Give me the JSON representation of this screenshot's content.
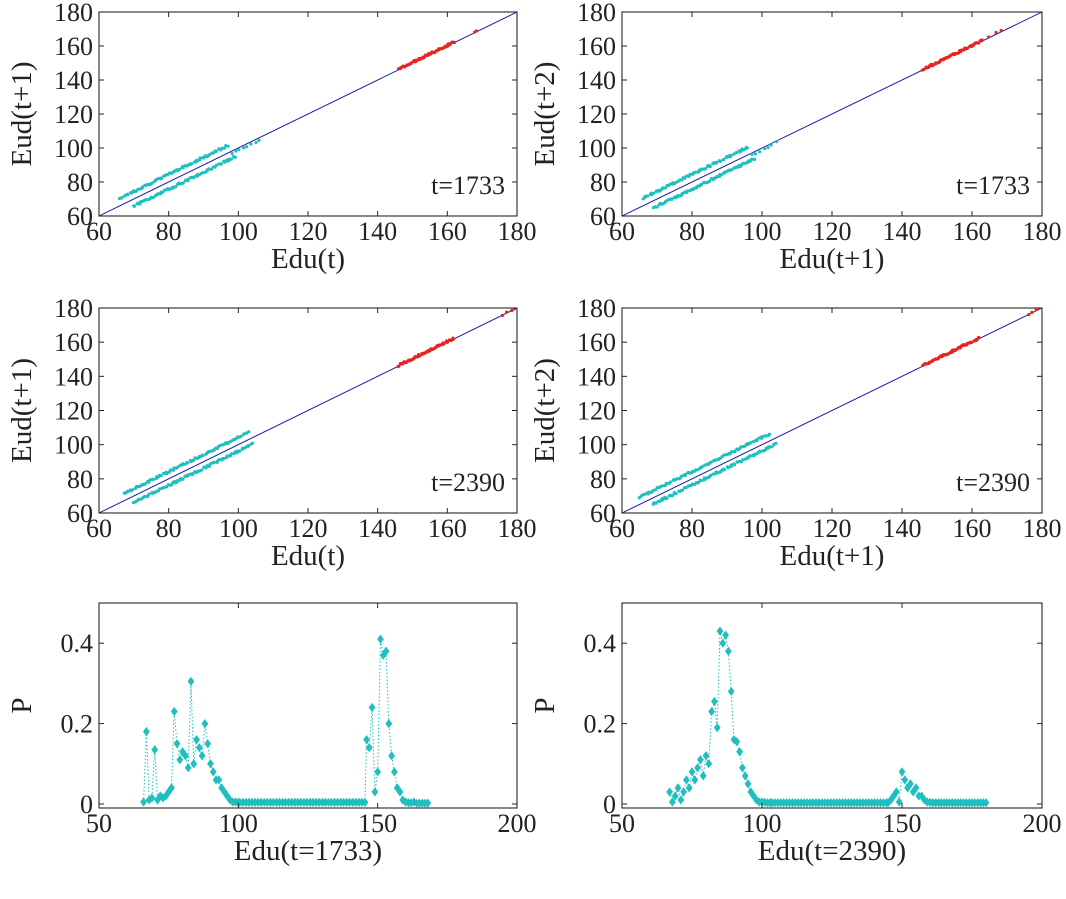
{
  "figure": {
    "colors": {
      "cyan": "#1fbfbf",
      "red": "#e8231f",
      "diagonal": "#1a1aa8",
      "axis": "#262626"
    }
  },
  "chart_data": [
    {
      "id": "p1",
      "type": "scatter",
      "xlabel": "Edu(t)",
      "ylabel": "Eud(t+1)",
      "annotation": "t=1733",
      "xlim": [
        60,
        180
      ],
      "ylim": [
        60,
        180
      ],
      "xticks": [
        60,
        80,
        100,
        120,
        140,
        160,
        180
      ],
      "yticks": [
        60,
        80,
        100,
        120,
        140,
        160,
        180
      ],
      "diagonal": true,
      "series": [
        {
          "name": "upper branch",
          "color": "cyan",
          "x_range": [
            66,
            97
          ],
          "offset": 4.5,
          "count": 80
        },
        {
          "name": "lower branch",
          "color": "cyan",
          "x_range": [
            70,
            99
          ],
          "offset": -4.2,
          "count": 80
        },
        {
          "name": "sparse tail",
          "color": "cyan",
          "x_range": [
            98,
            106
          ],
          "offset": -1.5,
          "count": 8
        },
        {
          "name": "high cluster",
          "color": "red",
          "x_range": [
            146,
            162
          ],
          "offset": 0.4,
          "count": 60
        },
        {
          "name": "high outlier",
          "color": "red",
          "x_range": [
            168,
            168.5
          ],
          "offset": 0.6,
          "count": 2
        }
      ]
    },
    {
      "id": "p2",
      "type": "scatter",
      "xlabel": "Edu(t+1)",
      "ylabel": "Eud(t+2)",
      "annotation": "t=1733",
      "xlim": [
        60,
        180
      ],
      "ylim": [
        60,
        180
      ],
      "xticks": [
        60,
        80,
        100,
        120,
        140,
        160,
        180
      ],
      "yticks": [
        60,
        80,
        100,
        120,
        140,
        160,
        180
      ],
      "diagonal": true,
      "series": [
        {
          "name": "upper branch",
          "color": "cyan",
          "x_range": [
            66,
            96
          ],
          "offset": 4.5,
          "count": 80
        },
        {
          "name": "lower branch",
          "color": "cyan",
          "x_range": [
            69,
            98
          ],
          "offset": -4.2,
          "count": 80
        },
        {
          "name": "sparse tail",
          "color": "cyan",
          "x_range": [
            97,
            104
          ],
          "offset": -1,
          "count": 7
        },
        {
          "name": "high cluster",
          "color": "red",
          "x_range": [
            146,
            163
          ],
          "offset": 0.3,
          "count": 60
        },
        {
          "name": "high outlier",
          "color": "red",
          "x_range": [
            165,
            168.5
          ],
          "offset": 0.5,
          "count": 3
        }
      ]
    },
    {
      "id": "p3",
      "type": "scatter",
      "xlabel": "Edu(t)",
      "ylabel": "Eud(t+1)",
      "annotation": "t=2390",
      "xlim": [
        60,
        180
      ],
      "ylim": [
        60,
        180
      ],
      "xticks": [
        60,
        80,
        100,
        120,
        140,
        160,
        180
      ],
      "yticks": [
        60,
        80,
        100,
        120,
        140,
        160,
        180
      ],
      "diagonal": true,
      "series": [
        {
          "name": "upper branch",
          "color": "cyan",
          "x_range": [
            67,
            103
          ],
          "offset": 4.2,
          "count": 90
        },
        {
          "name": "lower branch",
          "color": "cyan",
          "x_range": [
            70,
            104
          ],
          "offset": -3.8,
          "count": 90
        },
        {
          "name": "high cluster",
          "color": "red",
          "x_range": [
            146,
            162
          ],
          "offset": 0.4,
          "count": 60
        },
        {
          "name": "high outlier",
          "color": "red",
          "x_range": [
            176,
            179.5
          ],
          "offset": 0.3,
          "count": 4
        }
      ]
    },
    {
      "id": "p4",
      "type": "scatter",
      "xlabel": "Edu(t+1)",
      "ylabel": "Eud(t+2)",
      "annotation": "t=2390",
      "xlim": [
        60,
        180
      ],
      "ylim": [
        60,
        180
      ],
      "xticks": [
        60,
        80,
        100,
        120,
        140,
        160,
        180
      ],
      "yticks": [
        60,
        80,
        100,
        120,
        140,
        160,
        180
      ],
      "diagonal": true,
      "series": [
        {
          "name": "upper branch",
          "color": "cyan",
          "x_range": [
            65,
            102
          ],
          "offset": 4.2,
          "count": 90
        },
        {
          "name": "lower branch",
          "color": "cyan",
          "x_range": [
            69,
            104
          ],
          "offset": -3.6,
          "count": 90
        },
        {
          "name": "high cluster",
          "color": "red",
          "x_range": [
            146,
            162
          ],
          "offset": 0.4,
          "count": 60
        },
        {
          "name": "high outlier",
          "color": "red",
          "x_range": [
            176,
            179.5
          ],
          "offset": 0.3,
          "count": 4
        }
      ]
    },
    {
      "id": "p5",
      "type": "line",
      "xlabel": "Edu(t=1733)",
      "ylabel": "P",
      "xlim": [
        50,
        200
      ],
      "ylim": [
        -0.01,
        0.5
      ],
      "xticks": [
        50,
        100,
        150,
        200
      ],
      "yticks": [
        0,
        0.2,
        0.4
      ],
      "ytick_labels": [
        "0",
        "0.2",
        "0.4"
      ],
      "marker": "diamond",
      "linestyle": "dotted",
      "color": "cyan",
      "x": [
        66,
        67,
        68,
        69,
        70,
        71,
        72,
        73,
        74,
        75,
        76,
        77,
        78,
        79,
        80,
        81,
        82,
        83,
        84,
        85,
        86,
        87,
        88,
        89,
        90,
        91,
        92,
        93,
        94,
        95,
        96,
        97,
        98,
        99,
        100,
        146,
        147,
        148,
        149,
        150,
        151,
        152,
        153,
        154,
        155,
        156,
        157,
        158,
        159,
        160,
        161,
        162,
        163,
        164,
        165,
        166,
        167,
        168
      ],
      "y": [
        0.005,
        0.18,
        0.01,
        0.015,
        0.135,
        0.01,
        0.02,
        0.015,
        0.02,
        0.03,
        0.04,
        0.23,
        0.15,
        0.11,
        0.13,
        0.12,
        0.09,
        0.305,
        0.1,
        0.16,
        0.14,
        0.12,
        0.2,
        0.15,
        0.1,
        0.08,
        0.06,
        0.06,
        0.04,
        0.03,
        0.02,
        0.01,
        0.005,
        0.005,
        0.004,
        0.16,
        0.14,
        0.24,
        0.03,
        0.08,
        0.41,
        0.37,
        0.38,
        0.2,
        0.12,
        0.08,
        0.04,
        0.03,
        0.01,
        0.005,
        0.003,
        0.003,
        0.005,
        0.002,
        0.002,
        0.002,
        0.002,
        0.002
      ],
      "baseline_x_range": [
        100,
        146
      ],
      "baseline_count": 42,
      "baseline_value": 0.004
    },
    {
      "id": "p6",
      "type": "line",
      "xlabel": "Edu(t=2390)",
      "ylabel": "P",
      "xlim": [
        50,
        200
      ],
      "ylim": [
        -0.01,
        0.5
      ],
      "xticks": [
        50,
        100,
        150,
        200
      ],
      "yticks": [
        0,
        0.2,
        0.4
      ],
      "ytick_labels": [
        "0",
        "0.2",
        "0.4"
      ],
      "marker": "diamond",
      "linestyle": "dotted",
      "color": "cyan",
      "x": [
        67,
        68,
        69,
        70,
        71,
        72,
        73,
        74,
        75,
        76,
        77,
        78,
        79,
        80,
        81,
        82,
        83,
        84,
        85,
        86,
        87,
        88,
        89,
        90,
        91,
        92,
        93,
        94,
        95,
        96,
        97,
        98,
        99,
        100,
        101,
        102,
        103,
        145,
        146,
        147,
        148,
        149,
        150,
        151,
        152,
        153,
        154,
        155,
        156,
        157,
        158,
        159,
        160,
        161,
        162,
        163,
        164,
        165,
        166,
        167,
        168,
        169,
        170,
        171,
        172,
        173,
        174,
        175,
        176,
        177,
        178,
        179,
        180
      ],
      "y": [
        0.03,
        0.005,
        0.02,
        0.04,
        0.01,
        0.03,
        0.06,
        0.04,
        0.08,
        0.06,
        0.09,
        0.11,
        0.07,
        0.12,
        0.1,
        0.23,
        0.255,
        0.19,
        0.43,
        0.4,
        0.42,
        0.38,
        0.28,
        0.16,
        0.155,
        0.13,
        0.09,
        0.07,
        0.05,
        0.03,
        0.02,
        0.01,
        0.005,
        0.005,
        0.004,
        0.003,
        0.003,
        0.003,
        0.01,
        0.02,
        0.03,
        0.005,
        0.08,
        0.06,
        0.04,
        0.05,
        0.03,
        0.04,
        0.02,
        0.02,
        0.01,
        0.005,
        0.004,
        0.003,
        0.003,
        0.003,
        0.003,
        0.003,
        0.003,
        0.003,
        0.003,
        0.003,
        0.003,
        0.003,
        0.003,
        0.003,
        0.003,
        0.003,
        0.003,
        0.003,
        0.003,
        0.003,
        0.003
      ],
      "baseline_x_range": [
        103,
        145
      ],
      "baseline_count": 40,
      "baseline_value": 0.003
    }
  ]
}
